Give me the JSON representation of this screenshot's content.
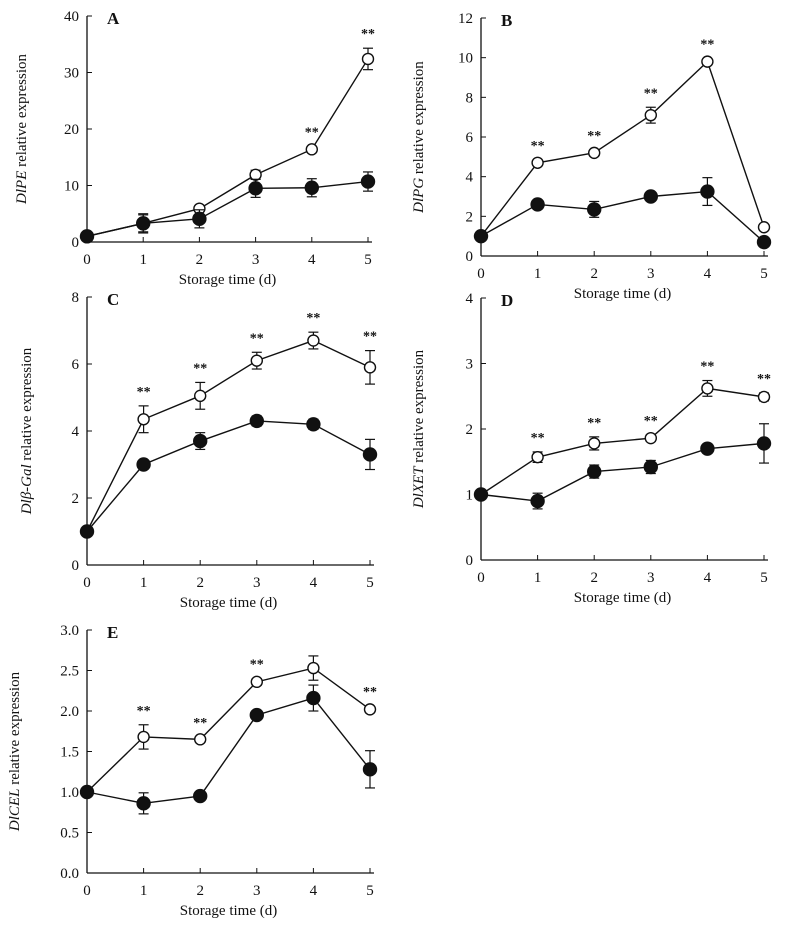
{
  "chart_data": [
    {
      "type": "line",
      "panel": "A",
      "ylabel_gene": "DlPE",
      "ylabel_rest": " relative expression",
      "xlabel": "Storage time (d)",
      "x": [
        0,
        1,
        2,
        3,
        4,
        5
      ],
      "ylim": [
        0,
        40
      ],
      "yticks": [
        0,
        10,
        20,
        30,
        40
      ],
      "series": [
        {
          "name": "open",
          "marker": "open-circle",
          "values": [
            1,
            3.3,
            5.9,
            11.9,
            16.4,
            32.4
          ],
          "errors": [
            0,
            1.5,
            0.5,
            0.8,
            0.5,
            1.9
          ]
        },
        {
          "name": "filled",
          "marker": "filled-circle",
          "values": [
            1,
            3.3,
            4.1,
            9.5,
            9.6,
            10.7
          ],
          "errors": [
            0.5,
            1.7,
            1.6,
            1.6,
            1.6,
            1.7
          ]
        }
      ],
      "significance": {
        "label": "**",
        "x": [
          4,
          5
        ]
      }
    },
    {
      "type": "line",
      "panel": "B",
      "ylabel_gene": "DlPG",
      "ylabel_rest": " relative expression",
      "xlabel": "Storage time (d)",
      "x": [
        0,
        1,
        2,
        3,
        4,
        5
      ],
      "ylim": [
        0,
        12
      ],
      "yticks": [
        0,
        2,
        4,
        6,
        8,
        10,
        12
      ],
      "series": [
        {
          "name": "open",
          "marker": "open-circle",
          "values": [
            1,
            4.7,
            5.2,
            7.1,
            9.8,
            1.45
          ],
          "errors": [
            0,
            0.15,
            0.15,
            0.4,
            0.15,
            0.1
          ]
        },
        {
          "name": "filled",
          "marker": "filled-circle",
          "values": [
            1,
            2.6,
            2.35,
            3.0,
            3.25,
            0.7
          ],
          "errors": [
            0,
            0.2,
            0.4,
            0.1,
            0.7,
            0.05
          ]
        }
      ],
      "significance": {
        "label": "**",
        "x": [
          1,
          2,
          3,
          4
        ]
      }
    },
    {
      "type": "line",
      "panel": "C",
      "ylabel_gene": "Dlβ-Gal",
      "ylabel_rest": " relative expression",
      "xlabel": "Storage time (d)",
      "x": [
        0,
        1,
        2,
        3,
        4,
        5
      ],
      "ylim": [
        0,
        8
      ],
      "yticks": [
        0,
        2,
        4,
        6,
        8
      ],
      "series": [
        {
          "name": "open",
          "marker": "open-circle",
          "values": [
            1,
            4.35,
            5.05,
            6.1,
            6.7,
            5.9
          ],
          "errors": [
            0,
            0.4,
            0.4,
            0.25,
            0.25,
            0.5
          ]
        },
        {
          "name": "filled",
          "marker": "filled-circle",
          "values": [
            1,
            3.0,
            3.7,
            4.3,
            4.2,
            3.3
          ],
          "errors": [
            0,
            0.1,
            0.25,
            0.15,
            0.15,
            0.45
          ]
        }
      ],
      "significance": {
        "label": "**",
        "x": [
          1,
          2,
          3,
          4,
          5
        ]
      }
    },
    {
      "type": "line",
      "panel": "D",
      "ylabel_gene": "DlXET",
      "ylabel_rest": " relative expression",
      "xlabel": "Storage time (d)",
      "x": [
        0,
        1,
        2,
        3,
        4,
        5
      ],
      "ylim": [
        0,
        4
      ],
      "yticks": [
        0,
        1,
        2,
        3,
        4
      ],
      "series": [
        {
          "name": "open",
          "marker": "open-circle",
          "values": [
            1,
            1.57,
            1.78,
            1.86,
            2.62,
            2.49
          ],
          "errors": [
            0,
            0.08,
            0.1,
            0.05,
            0.12,
            0.06
          ]
        },
        {
          "name": "filled",
          "marker": "filled-circle",
          "values": [
            1,
            0.9,
            1.35,
            1.42,
            1.7,
            1.78
          ],
          "errors": [
            0,
            0.12,
            0.1,
            0.1,
            0.06,
            0.3
          ]
        }
      ],
      "significance": {
        "label": "**",
        "x": [
          1,
          2,
          3,
          4,
          5
        ]
      }
    },
    {
      "type": "line",
      "panel": "E",
      "ylabel_gene": "DlCEL",
      "ylabel_rest": " relative expression",
      "xlabel": "Storage time (d)",
      "x": [
        0,
        1,
        2,
        3,
        4,
        5
      ],
      "ylim": [
        0,
        3
      ],
      "yticks": [
        "0.0",
        "0.5",
        "1.0",
        "1.5",
        "2.0",
        "2.5",
        "3.0"
      ],
      "series": [
        {
          "name": "open",
          "marker": "open-circle",
          "values": [
            1,
            1.68,
            1.65,
            2.36,
            2.53,
            2.02
          ],
          "errors": [
            0,
            0.15,
            0.03,
            0.04,
            0.15,
            0.04
          ]
        },
        {
          "name": "filled",
          "marker": "filled-circle",
          "values": [
            1,
            0.86,
            0.95,
            1.95,
            2.16,
            1.28
          ],
          "errors": [
            0,
            0.13,
            0.03,
            0.05,
            0.16,
            0.23
          ]
        }
      ],
      "significance": {
        "label": "**",
        "x": [
          1,
          2,
          3,
          5
        ]
      }
    }
  ]
}
